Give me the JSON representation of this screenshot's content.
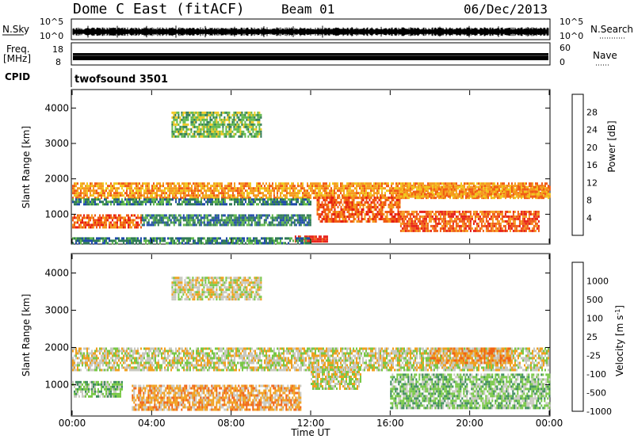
{
  "header": {
    "title": "Dome C East (fitACF)",
    "beam": "Beam 01",
    "date": "06/Dec/2013"
  },
  "panels": {
    "nsky_label": "N.Sky",
    "nsky_top": "10^5",
    "nsky_bottom": "10^0",
    "nsearch_label": "N.Search",
    "nsearch_top": "10^5",
    "nsearch_bottom": "10^0",
    "freq_label": "Freq.",
    "freq_unit": "[MHz]",
    "freq_top": "18",
    "freq_bottom": "8",
    "nave_label": "Nave",
    "nave_top": "60",
    "nave_bottom": "0",
    "cpid_label": "CPID",
    "cpid_value": "twofsound 3501"
  },
  "chart_data": [
    {
      "type": "heatmap",
      "title": "Power",
      "ylabel": "Slant Range [km]",
      "xlabel": "",
      "ylim": [
        180,
        4500
      ],
      "yticks": [
        "1000",
        "2000",
        "3000",
        "4000"
      ],
      "colorbar": {
        "label": "Power [dB]",
        "ticks": [
          "4",
          "8",
          "12",
          "16",
          "20",
          "24",
          "28"
        ],
        "range": [
          0,
          32
        ],
        "colors": [
          "#0a14e0",
          "#1e4aa8",
          "#2f7a55",
          "#5fb84a",
          "#f0c81e",
          "#f59a1e",
          "#f05a14",
          "#e61c14"
        ]
      },
      "bands": [
        {
          "x": [
            0.0,
            24.0
          ],
          "y": [
            1450,
            1900
          ],
          "level": 20
        },
        {
          "x": [
            0.0,
            12.0
          ],
          "y": [
            1300,
            1450
          ],
          "level": 8
        },
        {
          "x": [
            0.0,
            3.5
          ],
          "y": [
            600,
            1000
          ],
          "level": 26
        },
        {
          "x": [
            3.5,
            12.0
          ],
          "y": [
            700,
            1000
          ],
          "level": 10
        },
        {
          "x": [
            12.3,
            16.5
          ],
          "y": [
            800,
            1500
          ],
          "level": 26
        },
        {
          "x": [
            16.5,
            23.5
          ],
          "y": [
            500,
            1100
          ],
          "level": 27
        },
        {
          "x": [
            16.5,
            24.0
          ],
          "y": [
            1500,
            1800
          ],
          "level": 22
        },
        {
          "x": [
            11.2,
            12.8
          ],
          "y": [
            250,
            400
          ],
          "level": 28
        },
        {
          "x": [
            5.0,
            9.5
          ],
          "y": [
            3200,
            3900
          ],
          "level": 12
        },
        {
          "x": [
            0.0,
            12.0
          ],
          "y": [
            200,
            350
          ],
          "level": 8
        }
      ]
    },
    {
      "type": "heatmap",
      "title": "Velocity",
      "ylabel": "Slant Range [km]",
      "xlabel": "Time UT",
      "ylim": [
        180,
        4500
      ],
      "yticks": [
        "1000",
        "2000",
        "3000",
        "4000"
      ],
      "xticks": [
        "00:00",
        "04:00",
        "08:00",
        "12:00",
        "16:00",
        "20:00",
        "00:00"
      ],
      "xlim_hours": [
        0,
        24
      ],
      "colorbar": {
        "label": "Velocity [m s^-1]",
        "ticks": [
          "1000",
          "500",
          "100",
          "25",
          "-25",
          "-100",
          "-500",
          "-1000"
        ],
        "colors": [
          "#1a2acc",
          "#1e5aa0",
          "#3c8c5a",
          "#78c846",
          "#c8c8c0",
          "#f0a01e",
          "#f06414",
          "#e61414"
        ]
      },
      "bands": [
        {
          "x": [
            0.0,
            24.0
          ],
          "y": [
            1400,
            2000
          ],
          "level": "0"
        },
        {
          "x": [
            0.0,
            2.5
          ],
          "y": [
            700,
            1100
          ],
          "level": "100"
        },
        {
          "x": [
            3.0,
            11.5
          ],
          "y": [
            300,
            1000
          ],
          "level": "-100"
        },
        {
          "x": [
            12.0,
            14.5
          ],
          "y": [
            900,
            1500
          ],
          "level": "-25"
        },
        {
          "x": [
            16.0,
            24.0
          ],
          "y": [
            400,
            1300
          ],
          "level": "100"
        },
        {
          "x": [
            5.0,
            9.5
          ],
          "y": [
            3300,
            3900
          ],
          "level": "0"
        },
        {
          "x": [
            18.0,
            22.0
          ],
          "y": [
            1600,
            2000
          ],
          "level": "-100"
        }
      ]
    }
  ]
}
